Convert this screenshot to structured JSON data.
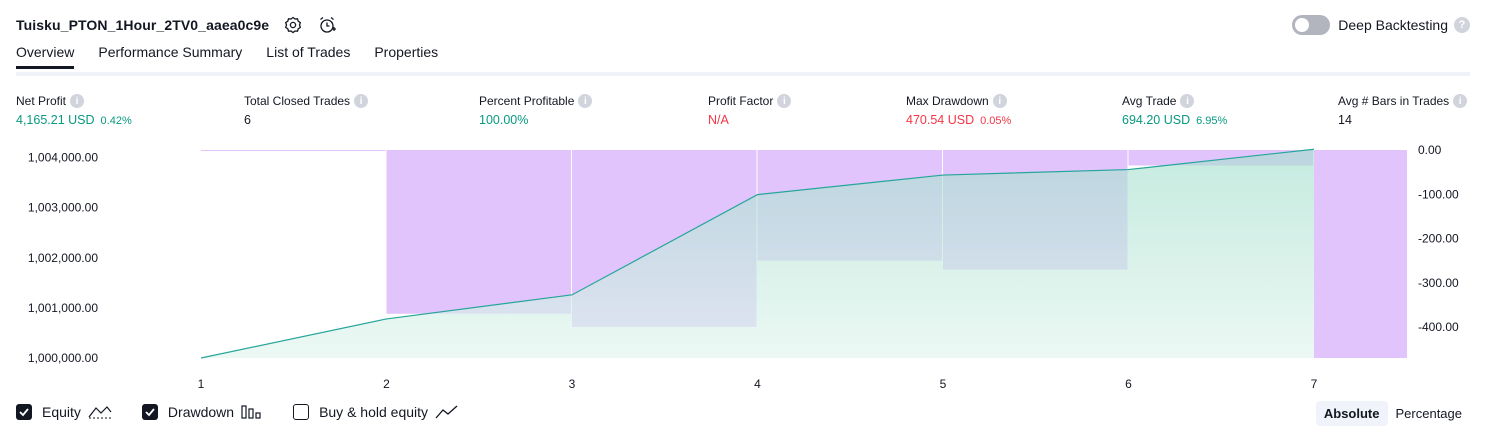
{
  "header": {
    "strategy_name": "Tuisku_PTON_1Hour_2TV0_aaea0c9e",
    "deep_backtesting_label": "Deep Backtesting"
  },
  "tabs": [
    {
      "label": "Overview"
    },
    {
      "label": "Performance Summary"
    },
    {
      "label": "List of Trades"
    },
    {
      "label": "Properties"
    }
  ],
  "metrics": {
    "net_profit": {
      "label": "Net Profit",
      "value": "4,165.21 USD",
      "pct": "0.42%"
    },
    "total_closed_trades": {
      "label": "Total Closed Trades",
      "value": "6"
    },
    "percent_profitable": {
      "label": "Percent Profitable",
      "value": "100.00%"
    },
    "profit_factor": {
      "label": "Profit Factor",
      "value": "N/A"
    },
    "max_drawdown": {
      "label": "Max Drawdown",
      "value": "470.54 USD",
      "pct": "0.05%"
    },
    "avg_trade": {
      "label": "Avg Trade",
      "value": "694.20 USD",
      "pct": "6.95%"
    },
    "avg_bars": {
      "label": "Avg # Bars in Trades",
      "value": "14"
    }
  },
  "legend": {
    "equity": "Equity",
    "drawdown": "Drawdown",
    "buy_hold": "Buy & hold equity"
  },
  "mode": {
    "absolute": "Absolute",
    "percentage": "Percentage"
  },
  "colors": {
    "equity_line": "#26a69a",
    "equity_fill": "#b2e6d8",
    "drawdown_fill": "#d8b4fe",
    "drawdown_active": "#e1c4fc"
  },
  "chart_data": {
    "type": "line",
    "x": [
      1,
      2,
      3,
      4,
      5,
      6,
      7
    ],
    "x_ticks": [
      "1",
      "2",
      "3",
      "4",
      "5",
      "6",
      "7"
    ],
    "series": [
      {
        "name": "Equity",
        "type": "area",
        "axis": "left",
        "values": [
          1000000,
          1000780,
          1001260,
          1003260,
          1003650,
          1003760,
          1004165
        ]
      },
      {
        "name": "Drawdown",
        "type": "bar",
        "axis": "right",
        "categories": [
          1.5,
          2.5,
          3.5,
          4.5,
          5.5,
          6.5,
          7.5
        ],
        "values": [
          0,
          -370,
          -400,
          -250,
          -270,
          -35,
          -470
        ]
      }
    ],
    "left_axis": {
      "ylim": [
        1000000,
        1004150
      ],
      "ticks": [
        "1,004,000.00",
        "1,003,000.00",
        "1,002,000.00",
        "1,001,000.00",
        "1,000,000.00"
      ],
      "tick_values": [
        1004000,
        1003000,
        1002000,
        1001000,
        1000000
      ]
    },
    "right_axis": {
      "ylim": [
        -470,
        0
      ],
      "ticks": [
        "0.00",
        "-100.00",
        "-200.00",
        "-300.00",
        "-400.00"
      ],
      "tick_values": [
        0,
        -100,
        -200,
        -300,
        -400
      ]
    },
    "grid": false
  }
}
